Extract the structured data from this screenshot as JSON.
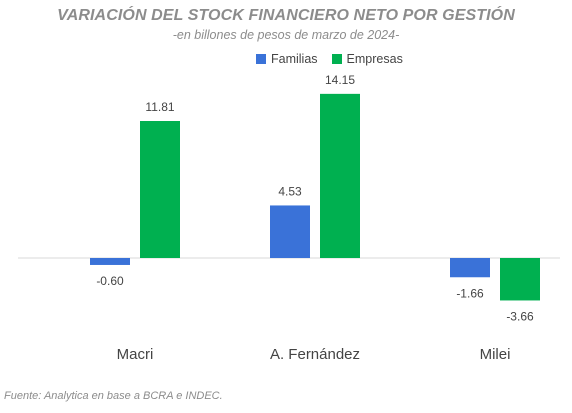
{
  "chart_data": {
    "type": "bar",
    "title": "VARIACIÓN DEL STOCK FINANCIERO NETO POR GESTIÓN",
    "subtitle": "-en billones de pesos de marzo de 2024-",
    "categories": [
      "Macri",
      "A. Fernández",
      "Milei"
    ],
    "series": [
      {
        "name": "Familias",
        "values": [
          -0.6,
          4.53,
          -1.66
        ],
        "labels": [
          "-0.60",
          "4.53",
          "-1.66"
        ],
        "color": "#3a72d8"
      },
      {
        "name": "Empresas",
        "values": [
          11.81,
          14.15,
          -3.66
        ],
        "labels": [
          "11.81",
          "14.15",
          "-3.66"
        ],
        "color": "#00b050"
      }
    ],
    "legend_position": "top-center",
    "grid": false,
    "ylim": [
      -4.5,
      16
    ]
  },
  "source": "Fuente: Analytica en base a BCRA e INDEC."
}
